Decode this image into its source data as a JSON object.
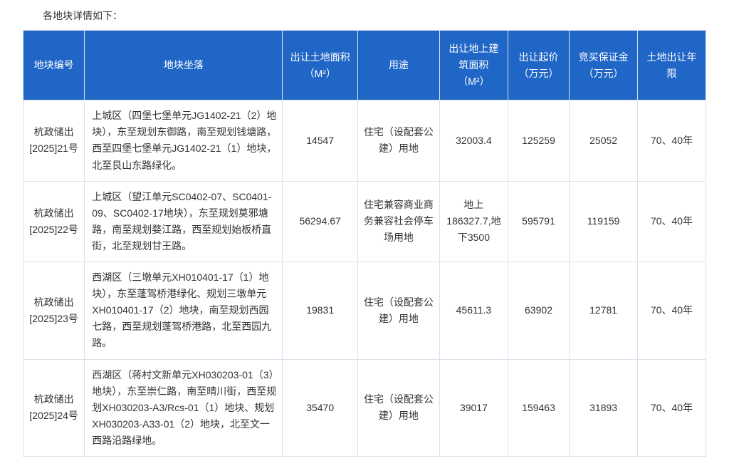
{
  "intro": "各地块详情如下：",
  "columns": [
    "地块编号",
    "地块坐落",
    "出让土地面积（M²）",
    "用途",
    "出让地上建筑面积（M²）",
    "出让起价（万元）",
    "竞买保证金（万元）",
    "土地出让年限"
  ],
  "rows": [
    {
      "id": "杭政储出[2025]21号",
      "location": "上城区（四堡七堡单元JG1402-21（2）地块），东至规划东御路，南至规划钱塘路，西至四堡七堡单元JG1402-21（1）地块，北至艮山东路绿化。",
      "land_area": "14547",
      "use": "住宅（设配套公建）用地",
      "build_area": "32003.4",
      "start_price": "125259",
      "deposit": "25052",
      "term": "70、40年"
    },
    {
      "id": "杭政储出[2025]22号",
      "location": "上城区（望江单元SC0402-07、SC0401-09、SC0402-17地块），东至规划莫邪塘路，南至规划婺江路，西至规划始板桥直街，北至规划甘王路。",
      "land_area": "56294.67",
      "use": "住宅兼容商业商务兼容社会停车场用地",
      "build_area": "地上186327.7,地下3500",
      "start_price": "595791",
      "deposit": "119159",
      "term": "70、40年"
    },
    {
      "id": "杭政储出[2025]23号",
      "location": "西湖区（三墩单元XH010401-17（1）地块），东至蓬驾桥港绿化、规划三墩单元XH010401-17（2）地块，南至规划西园七路，西至规划蓬驾桥港路，北至西园九路。",
      "land_area": "19831",
      "use": "住宅（设配套公建）用地",
      "build_area": "45611.3",
      "start_price": "63902",
      "deposit": "12781",
      "term": "70、40年"
    },
    {
      "id": "杭政储出[2025]24号",
      "location": "西湖区（蒋村文新单元XH030203-01（3）地块），东至崇仁路，南至晴川街，西至规划XH030203-A3/Rcs-01（1）地块、规划XH030203-A33-01（2）地块，北至文一西路沿路绿地。",
      "land_area": "35470",
      "use": "住宅（设配套公建）用地",
      "build_area": "39017",
      "start_price": "159463",
      "deposit": "31893",
      "term": "70、40年"
    }
  ]
}
